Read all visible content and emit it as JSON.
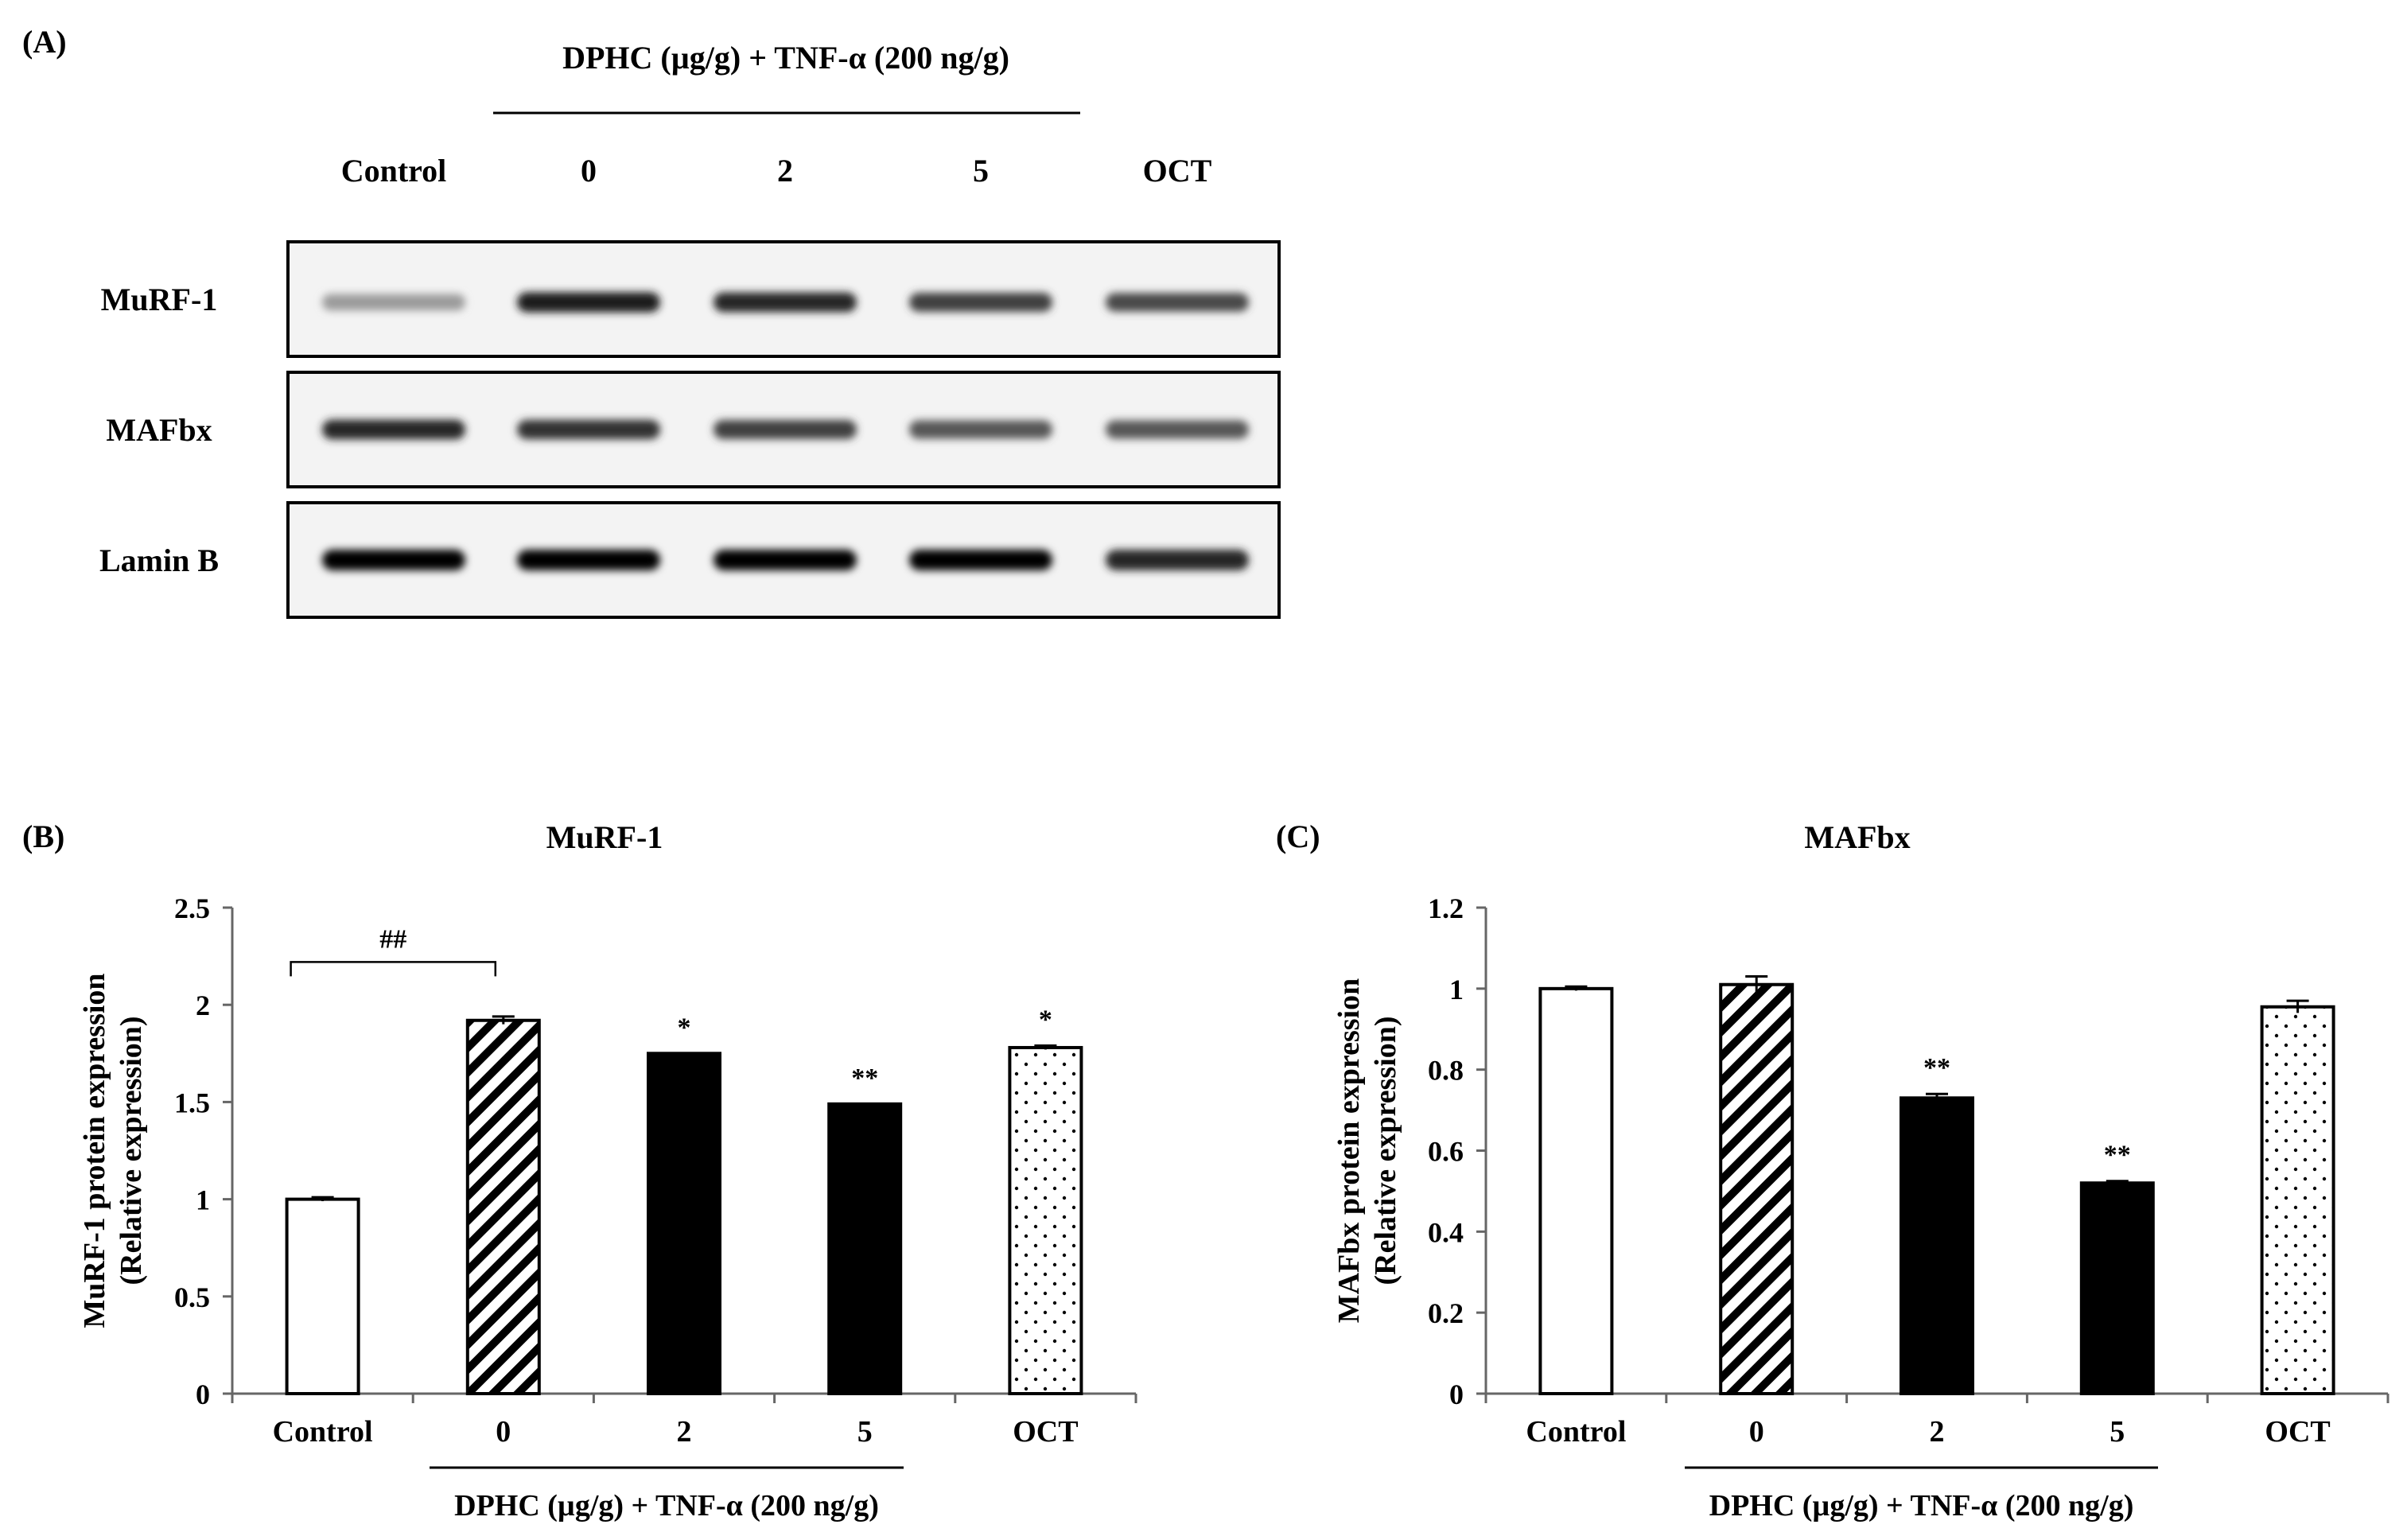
{
  "panel_a": {
    "panel_label": "(A)",
    "treatment_label": "DPHC (µg/g) + TNF-α (200 ng/g)",
    "lanes": [
      "Control",
      "0",
      "2",
      "5",
      "OCT"
    ],
    "blots": [
      {
        "label": "MuRF-1",
        "band_intensity": [
          0.35,
          0.9,
          0.85,
          0.75,
          0.7
        ]
      },
      {
        "label": "MAFbx",
        "band_intensity": [
          0.85,
          0.8,
          0.75,
          0.65,
          0.65
        ]
      },
      {
        "label": "Lamin B",
        "band_intensity": [
          1.0,
          1.0,
          1.0,
          1.0,
          0.85
        ]
      }
    ]
  },
  "chart_data": [
    {
      "type": "bar",
      "panel_label": "(B)",
      "title": "MuRF-1",
      "ylabel": [
        "MuRF-1 protein expression",
        "(Relative expression)"
      ],
      "xlabel": "DPHC (µg/g) + TNF-α (200 ng/g)",
      "categories": [
        "Control",
        "0",
        "2",
        "5",
        "OCT"
      ],
      "values": [
        1.0,
        1.92,
        1.75,
        1.49,
        1.78
      ],
      "errors": [
        0.01,
        0.02,
        0.0,
        0.0,
        0.01
      ],
      "ylim": [
        0,
        2.5
      ],
      "yticks": [
        "0",
        "0.5",
        "1",
        "1.5",
        "2",
        "2.5"
      ],
      "ytick_values": [
        0,
        0.5,
        1,
        1.5,
        2,
        2.5
      ],
      "bar_fills": [
        "white",
        "hatch",
        "black",
        "black",
        "dots"
      ],
      "significance": [
        "",
        "",
        "*",
        "**",
        "*"
      ],
      "bracket": {
        "from": 0,
        "to": 1,
        "label": "##"
      }
    },
    {
      "type": "bar",
      "panel_label": "(C)",
      "title": "MAFbx",
      "ylabel": [
        "MAFbx protein expression",
        "(Relative expression)"
      ],
      "xlabel": "DPHC (µg/g) + TNF-α (200 ng/g)",
      "categories": [
        "Control",
        "0",
        "2",
        "5",
        "OCT"
      ],
      "values": [
        1.0,
        1.01,
        0.73,
        0.52,
        0.955
      ],
      "errors": [
        0.005,
        0.02,
        0.01,
        0.005,
        0.015
      ],
      "ylim": [
        0,
        1.2
      ],
      "yticks": [
        "0",
        "0.2",
        "0.4",
        "0.6",
        "0.8",
        "1",
        "1.2"
      ],
      "ytick_values": [
        0,
        0.2,
        0.4,
        0.6,
        0.8,
        1.0,
        1.2
      ],
      "bar_fills": [
        "white",
        "hatch",
        "black",
        "black",
        "dots"
      ],
      "significance": [
        "",
        "",
        "**",
        "**",
        ""
      ]
    }
  ]
}
